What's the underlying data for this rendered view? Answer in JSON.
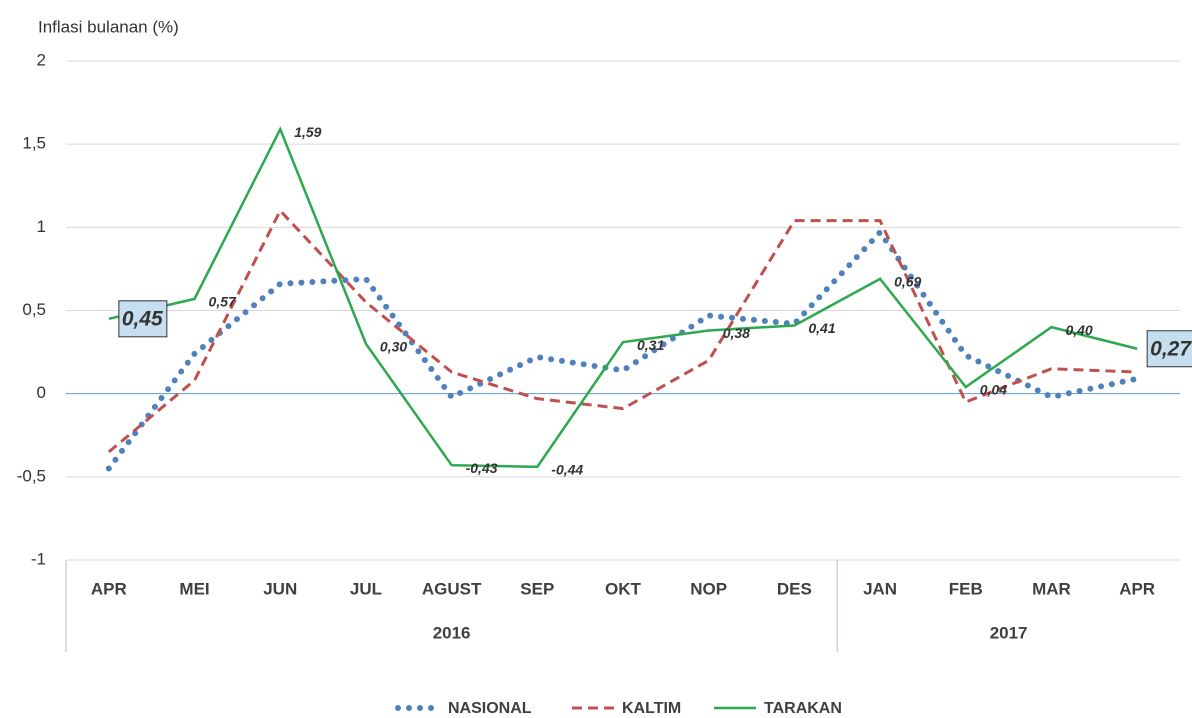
{
  "chart_data": {
    "type": "line",
    "y_label": "Inflasi bulanan (%)",
    "category_groups": [
      {
        "label": "2016",
        "categories": [
          "APR",
          "MEI",
          "JUN",
          "JUL",
          "AGUST",
          "SEP",
          "OKT",
          "NOP",
          "DES"
        ]
      },
      {
        "label": "2017",
        "categories": [
          "JAN",
          "FEB",
          "MAR",
          "APR"
        ]
      }
    ],
    "ylim": [
      -1,
      2
    ],
    "yticks": [
      -1,
      {
        "value": -0.5,
        "label": "-0,5"
      },
      0,
      {
        "value": 0.5,
        "label": "0,5"
      },
      1,
      {
        "value": 1.5,
        "label": "1,5"
      },
      2
    ],
    "grid": true,
    "legend": "bottom",
    "series": [
      {
        "name": "NASIONAL",
        "color": "#4f81bd",
        "style": "dotted",
        "values": [
          -0.45,
          0.24,
          0.66,
          0.69,
          -0.02,
          0.22,
          0.14,
          0.47,
          0.42,
          0.97,
          0.23,
          -0.02,
          0.09
        ]
      },
      {
        "name": "KALTIM",
        "color": "#c0504d",
        "style": "dashed",
        "values": [
          -0.35,
          0.08,
          1.1,
          0.55,
          0.13,
          -0.03,
          -0.09,
          0.2,
          1.04,
          1.04,
          -0.05,
          0.15,
          0.13
        ]
      },
      {
        "name": "TARAKAN",
        "color": "#2ca94f",
        "style": "solid",
        "values": [
          0.45,
          0.57,
          1.59,
          0.3,
          -0.43,
          -0.44,
          0.31,
          0.38,
          0.41,
          0.69,
          0.04,
          0.4,
          0.27
        ],
        "value_labels": [
          "0,45",
          "0,57",
          "1,59",
          "0,30",
          "-0,43",
          "-0,44",
          "0,31",
          "0,38",
          "0,41",
          "0,69",
          "0,04",
          "0,40",
          "0,27"
        ]
      }
    ]
  }
}
